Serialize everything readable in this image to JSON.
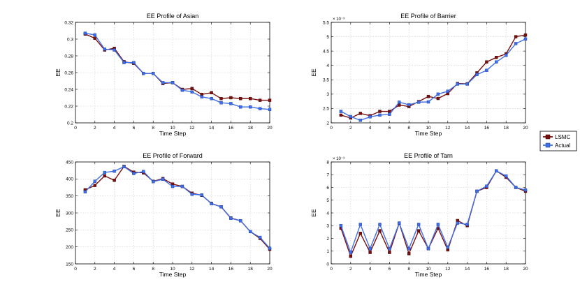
{
  "x_label": "Time Step",
  "y_label": "EE",
  "legend": {
    "entries": [
      "LSMC",
      "Actual"
    ],
    "colors": [
      "#7a0f0f",
      "#3f6fe8"
    ]
  },
  "colors": {
    "frame": "#000000",
    "grid": "#cccccc"
  },
  "chart_data": [
    {
      "type": "line",
      "title": "EE Profile of Asian",
      "xlabel": "Time Step",
      "ylabel": "EE",
      "x": [
        1,
        2,
        3,
        4,
        5,
        6,
        7,
        8,
        9,
        10,
        11,
        12,
        13,
        14,
        15,
        16,
        17,
        18,
        19,
        20
      ],
      "xlim": [
        0,
        20
      ],
      "ylim": [
        0.2,
        0.32
      ],
      "xticks": [
        0,
        2,
        4,
        6,
        8,
        10,
        12,
        14,
        16,
        18,
        20
      ],
      "yticks": [
        0.2,
        0.22,
        0.24,
        0.26,
        0.28,
        0.3,
        0.32
      ],
      "ytick_labels": [
        "0.2",
        "0.22",
        "0.24",
        "0.26",
        "0.28",
        "0.3",
        "0.32"
      ],
      "exponent": "",
      "series": [
        {
          "name": "LSMC",
          "values": [
            0.306,
            0.301,
            0.287,
            0.289,
            0.273,
            0.271,
            0.259,
            0.259,
            0.247,
            0.248,
            0.24,
            0.241,
            0.234,
            0.236,
            0.229,
            0.23,
            0.229,
            0.229,
            0.227,
            0.227
          ]
        },
        {
          "name": "Actual",
          "values": [
            0.307,
            0.305,
            0.288,
            0.287,
            0.272,
            0.272,
            0.259,
            0.259,
            0.248,
            0.248,
            0.239,
            0.237,
            0.231,
            0.229,
            0.224,
            0.223,
            0.219,
            0.219,
            0.217,
            0.216
          ]
        }
      ]
    },
    {
      "type": "line",
      "title": "EE Profile of Barrier",
      "xlabel": "Time Step",
      "ylabel": "EE",
      "x": [
        1,
        2,
        3,
        4,
        5,
        6,
        7,
        8,
        9,
        10,
        11,
        12,
        13,
        14,
        15,
        16,
        17,
        18,
        19,
        20
      ],
      "xlim": [
        0,
        20
      ],
      "ylim": [
        2,
        5.5
      ],
      "xticks": [
        0,
        2,
        4,
        6,
        8,
        10,
        12,
        14,
        16,
        18,
        20
      ],
      "yticks": [
        2,
        2.5,
        3,
        3.5,
        4,
        4.5,
        5,
        5.5
      ],
      "ytick_labels": [
        "2",
        "2.5",
        "3",
        "3.5",
        "4",
        "4.5",
        "5",
        "5.5"
      ],
      "exponent": "× 10⁻³",
      "series": [
        {
          "name": "LSMC",
          "values": [
            2.27,
            2.17,
            2.33,
            2.25,
            2.4,
            2.4,
            2.62,
            2.57,
            2.74,
            2.92,
            2.85,
            3.02,
            3.37,
            3.36,
            3.74,
            4.12,
            4.28,
            4.4,
            5.0,
            5.06
          ]
        },
        {
          "name": "Actual",
          "values": [
            2.4,
            2.22,
            2.09,
            2.21,
            2.27,
            2.3,
            2.72,
            2.63,
            2.72,
            2.73,
            3.0,
            3.1,
            3.35,
            3.35,
            3.68,
            3.83,
            4.12,
            4.35,
            4.76,
            4.92
          ]
        }
      ]
    },
    {
      "type": "line",
      "title": "EE Profile of Forward",
      "xlabel": "Time Step",
      "ylabel": "EE",
      "x": [
        1,
        2,
        3,
        4,
        5,
        6,
        7,
        8,
        9,
        10,
        11,
        12,
        13,
        14,
        15,
        16,
        17,
        18,
        19,
        20
      ],
      "xlim": [
        0,
        20
      ],
      "ylim": [
        150,
        450
      ],
      "xticks": [
        0,
        2,
        4,
        6,
        8,
        10,
        12,
        14,
        16,
        18,
        20
      ],
      "yticks": [
        150,
        200,
        250,
        300,
        350,
        400,
        450
      ],
      "ytick_labels": [
        "150",
        "200",
        "250",
        "300",
        "350",
        "400",
        "450"
      ],
      "exponent": "",
      "series": [
        {
          "name": "LSMC",
          "values": [
            368,
            381,
            409,
            396,
            437,
            420,
            418,
            393,
            401,
            385,
            378,
            358,
            352,
            328,
            318,
            285,
            277,
            245,
            225,
            193
          ]
        },
        {
          "name": "Actual",
          "values": [
            362,
            393,
            419,
            423,
            436,
            416,
            422,
            392,
            399,
            378,
            378,
            355,
            353,
            327,
            318,
            284,
            277,
            245,
            228,
            196
          ]
        }
      ]
    },
    {
      "type": "line",
      "title": "EE Profile of Tarn",
      "xlabel": "Time Step",
      "ylabel": "EE",
      "x": [
        1,
        2,
        3,
        4,
        5,
        6,
        7,
        8,
        9,
        10,
        11,
        12,
        13,
        14,
        15,
        16,
        17,
        18,
        19,
        20
      ],
      "xlim": [
        0,
        20
      ],
      "ylim": [
        0,
        8
      ],
      "xticks": [
        0,
        2,
        4,
        6,
        8,
        10,
        12,
        14,
        16,
        18,
        20
      ],
      "yticks": [
        0,
        1,
        2,
        3,
        4,
        5,
        6,
        7,
        8
      ],
      "ytick_labels": [
        "0",
        "1",
        "2",
        "3",
        "4",
        "5",
        "6",
        "7",
        "8"
      ],
      "exponent": "× 10⁻³",
      "series": [
        {
          "name": "LSMC",
          "values": [
            2.8,
            0.6,
            2.4,
            0.9,
            2.6,
            0.9,
            3.2,
            0.8,
            2.6,
            1.2,
            2.8,
            1.1,
            3.4,
            3.0,
            5.7,
            6.0,
            7.3,
            6.8,
            6.0,
            5.7
          ]
        },
        {
          "name": "Actual",
          "values": [
            3.0,
            0.9,
            3.1,
            1.2,
            3.1,
            1.2,
            3.2,
            1.2,
            3.1,
            1.2,
            3.1,
            1.3,
            3.2,
            3.1,
            5.7,
            6.1,
            7.3,
            6.9,
            6.0,
            5.8
          ]
        }
      ]
    }
  ]
}
